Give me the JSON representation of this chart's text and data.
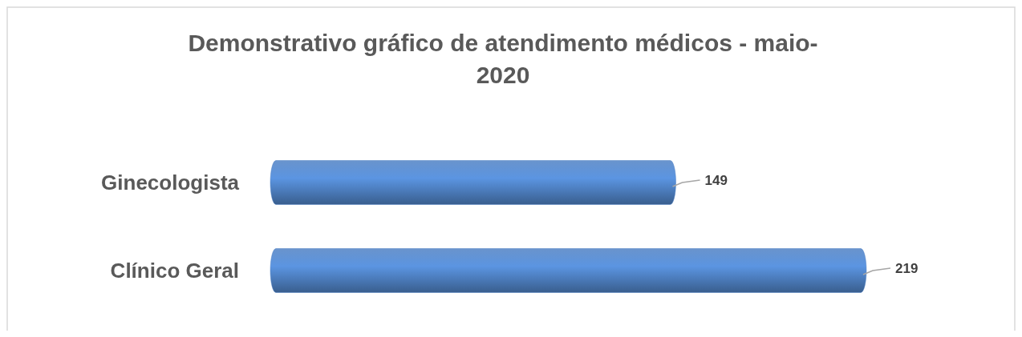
{
  "chart_data": {
    "type": "bar",
    "orientation": "horizontal",
    "title": "Demonstrativo gráfico de atendimento médicos - maio-2020",
    "categories": [
      "Ginecologista",
      "Clínico Geral"
    ],
    "values": [
      149,
      219
    ],
    "color": "#4f81c4",
    "data_labels": true
  }
}
